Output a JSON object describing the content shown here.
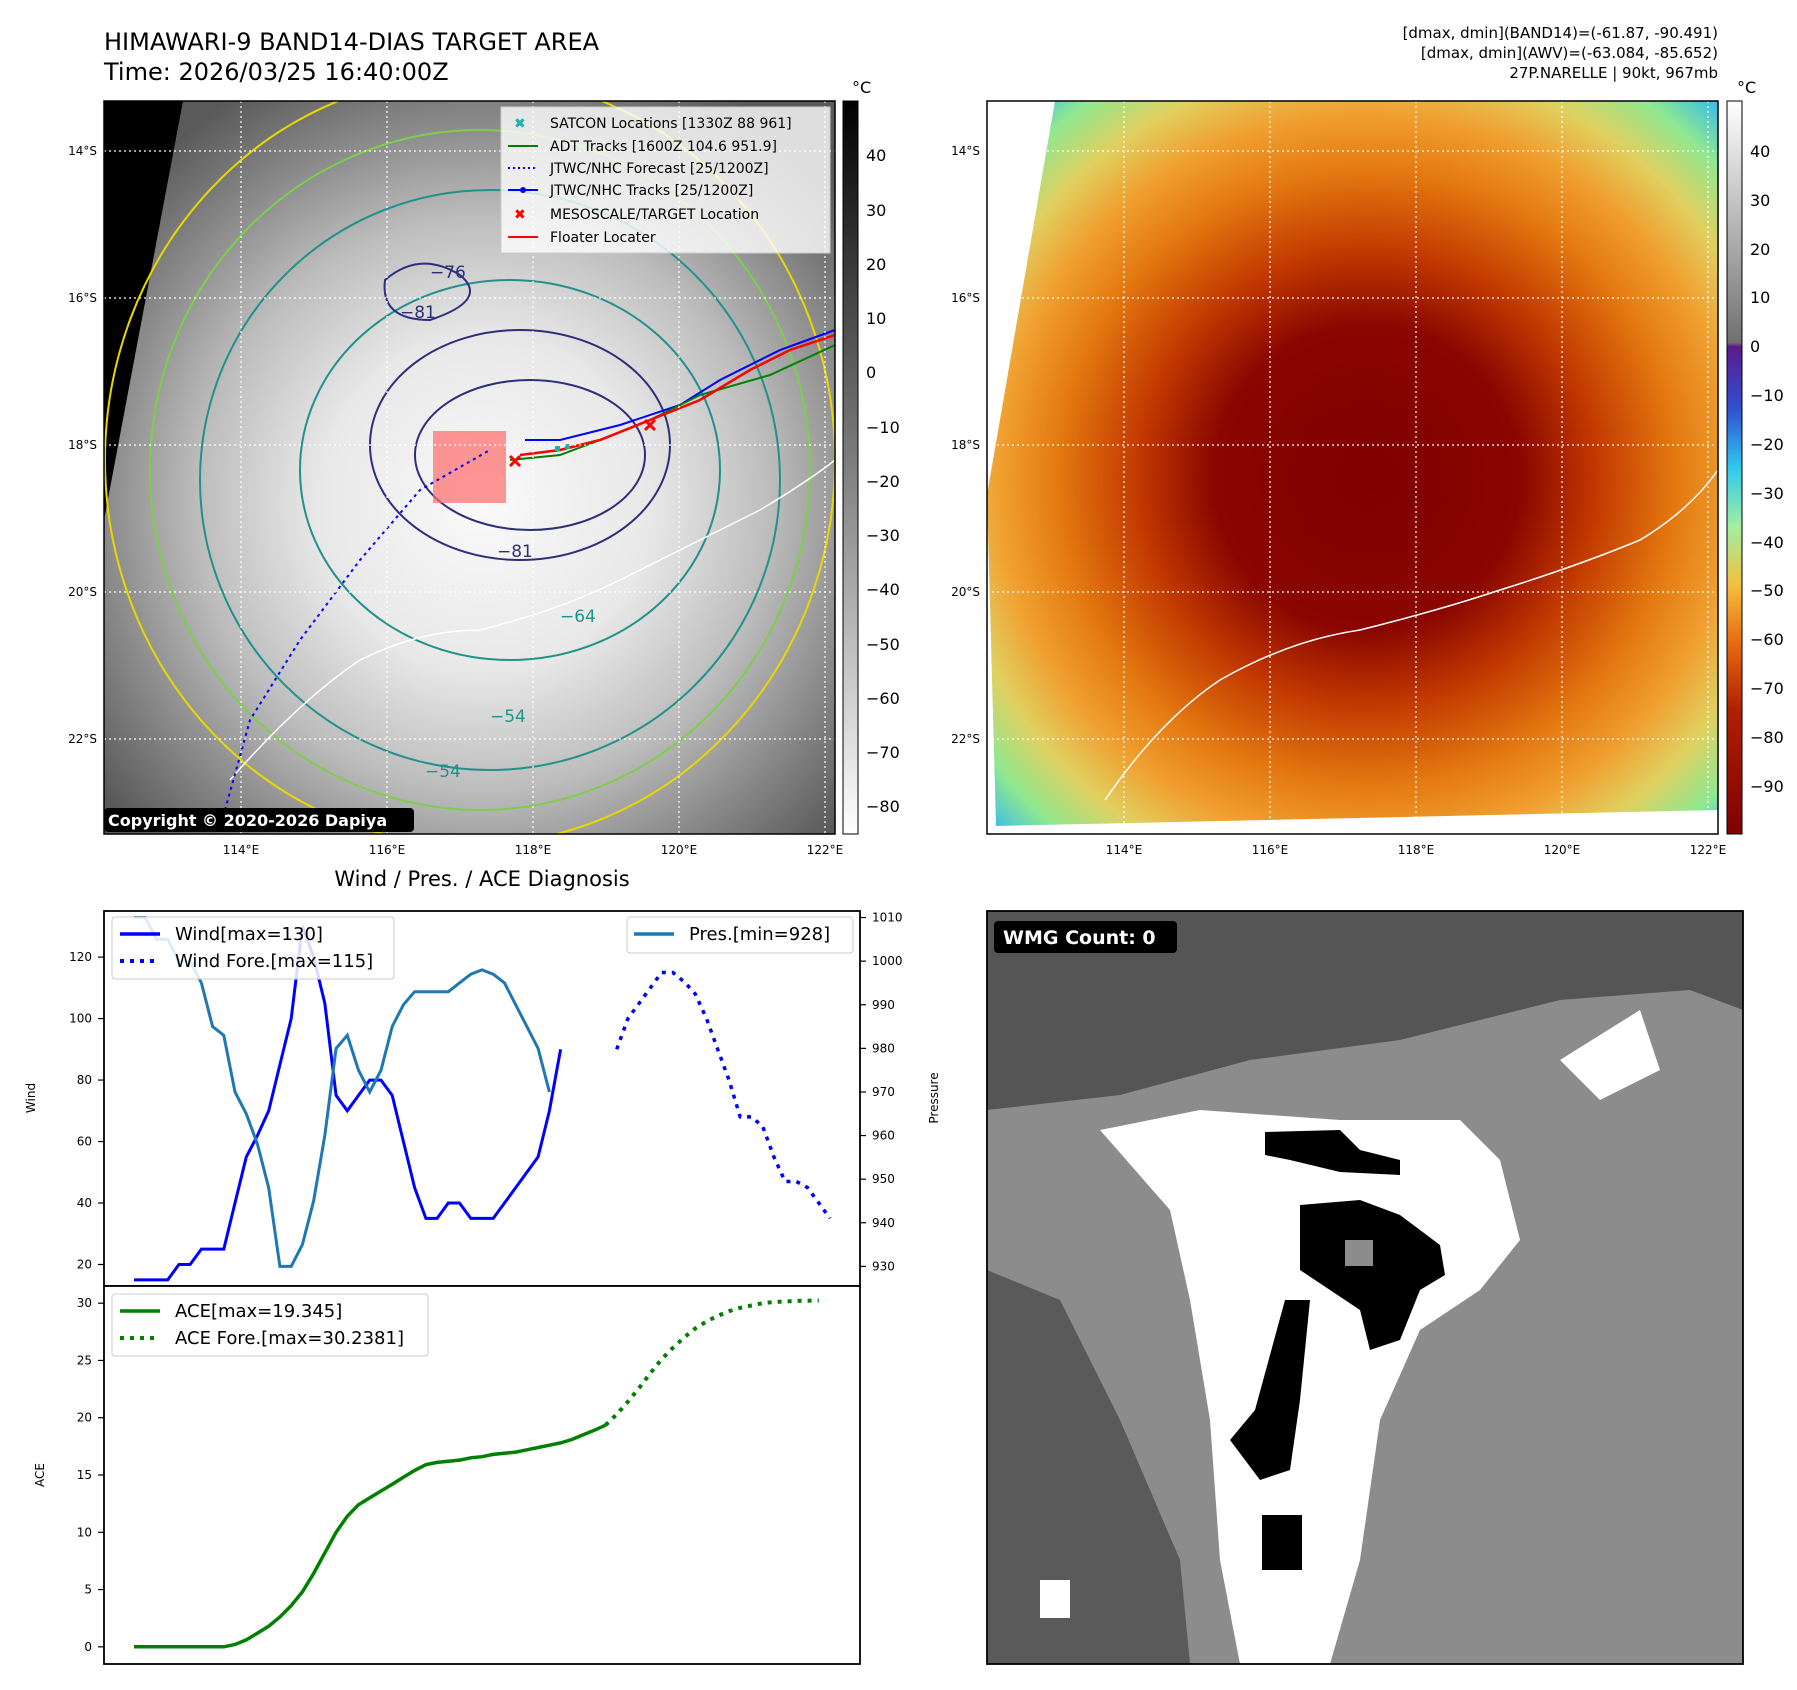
{
  "header": {
    "title": "HIMAWARI-9 BAND14-DIAS TARGET AREA",
    "time": "Time: 2026/03/25 16:40:00Z",
    "info_line1": "[dmax, dmin](BAND14)=(-61.87, -90.491)",
    "info_line2": "[dmax, dmin](AWV)=(-63.084, -85.652)",
    "info_line3": "27P.NARELLE | 90kt, 967mb"
  },
  "colors": {
    "wind": "#0000ff",
    "pressure": "#1f77b4",
    "ace": "#008000",
    "satcon": "#20b2aa",
    "adt": "#008000",
    "jtwc": "#0000ff",
    "mesoscale": "#ff0000",
    "floater": "#ff0000"
  },
  "map_left": {
    "copyright": "Copyright © 2020-2026 Dapiya",
    "cbar_unit": "°C",
    "cbar_ticks": [
      "40",
      "30",
      "20",
      "10",
      "0",
      "−10",
      "−20",
      "−30",
      "−40",
      "−50",
      "−60",
      "−70",
      "−80"
    ],
    "lat_labels": [
      "14°S",
      "16°S",
      "18°S",
      "20°S",
      "22°S"
    ],
    "lon_labels": [
      "114°E",
      "116°E",
      "118°E",
      "120°E",
      "122°E"
    ],
    "contour_labels": [
      "−76",
      "−81",
      "−81",
      "−64",
      "−54",
      "−54"
    ],
    "legend": [
      {
        "label": "SATCON Locations [1330Z 88 961]"
      },
      {
        "label": "ADT Tracks [1600Z 104.6 951.9]"
      },
      {
        "label": "JTWC/NHC Forecast [25/1200Z]"
      },
      {
        "label": "JTWC/NHC Tracks [25/1200Z]"
      },
      {
        "label": "MESOSCALE/TARGET Location"
      },
      {
        "label": "Floater Locater"
      }
    ]
  },
  "map_right": {
    "cbar_unit": "°C",
    "cbar_ticks": [
      "40",
      "30",
      "20",
      "10",
      "0",
      "−10",
      "−20",
      "−30",
      "−40",
      "−50",
      "−60",
      "−70",
      "−80",
      "−90"
    ],
    "lat_labels": [
      "14°S",
      "16°S",
      "18°S",
      "20°S",
      "22°S"
    ],
    "lon_labels": [
      "114°E",
      "116°E",
      "118°E",
      "120°E",
      "122°E"
    ]
  },
  "wmg": {
    "label": "WMG Count: 0"
  },
  "chart_data": [
    {
      "type": "line",
      "title": "Wind / Pres. / ACE Diagnosis",
      "ylabel": "Wind",
      "y2label": "Pressure",
      "ylim": [
        13,
        135
      ],
      "y2lim": [
        925.5,
        1011.5
      ],
      "xlim": [
        0,
        62
      ],
      "yticks": [
        20,
        40,
        60,
        80,
        100,
        120
      ],
      "y2ticks": [
        930,
        940,
        950,
        960,
        970,
        980,
        990,
        1000,
        1010
      ],
      "series": [
        {
          "name": "Wind[max=130]",
          "axis": "left",
          "x": [
            0,
            1,
            2,
            3,
            4,
            5,
            6,
            7,
            8,
            9,
            10,
            11,
            12,
            13,
            14,
            15,
            16,
            17,
            18,
            19,
            20,
            21,
            22,
            23,
            24,
            25,
            26,
            27,
            28,
            29,
            30,
            31,
            32,
            33,
            34,
            35,
            36,
            37,
            38,
            39,
            40,
            41,
            42,
            43
          ],
          "values": [
            15,
            15,
            15,
            15,
            20,
            20,
            25,
            25,
            25,
            40,
            55,
            62,
            70,
            85,
            100,
            130,
            120,
            105,
            75,
            70,
            75,
            80,
            80,
            75,
            60,
            45,
            35,
            35,
            40,
            40,
            35,
            35,
            35,
            40,
            45,
            50,
            55,
            70,
            90,
            null,
            null,
            null,
            null,
            null
          ]
        },
        {
          "name": "Wind Fore.[max=115]",
          "axis": "left",
          "style": "dotted",
          "x": [
            43,
            44,
            45,
            46,
            47,
            48,
            49,
            50,
            51,
            52,
            53,
            54,
            55,
            56,
            57,
            58,
            59,
            60,
            61,
            62
          ],
          "values": [
            90,
            100,
            105,
            110,
            115,
            115,
            112,
            108,
            100,
            90,
            80,
            68,
            68,
            65,
            55,
            47,
            47,
            45,
            40,
            35
          ]
        },
        {
          "name": "Pres.[min=928]",
          "axis": "right",
          "x": [
            0,
            1,
            2,
            3,
            4,
            5,
            6,
            7,
            8,
            9,
            10,
            11,
            12,
            13,
            14,
            15,
            16,
            17,
            18,
            19,
            20,
            21,
            22,
            23,
            24,
            25,
            26,
            27,
            28,
            29,
            30,
            31,
            32,
            33,
            34,
            35,
            36,
            37,
            38,
            39,
            40,
            41,
            42,
            43
          ],
          "values": [
            1010,
            1010,
            1005,
            1005,
            1000,
            1000,
            995,
            985,
            983,
            970,
            965,
            958,
            948,
            930,
            930,
            935,
            945,
            960,
            980,
            983,
            975,
            970,
            975,
            985,
            990,
            993,
            993,
            993,
            993,
            995,
            997,
            998,
            997,
            995,
            990,
            985,
            980,
            970,
            null,
            null,
            null,
            null,
            null,
            null
          ]
        },
        {
          "name": "ACE[max=19.345]",
          "axis": "ace",
          "x": [
            0,
            1,
            2,
            3,
            4,
            5,
            6,
            7,
            8,
            9,
            10,
            11,
            12,
            13,
            14,
            15,
            16,
            17,
            18,
            19,
            20,
            21,
            22,
            23,
            24,
            25,
            26,
            27,
            28,
            29,
            30,
            31,
            32,
            33,
            34,
            35,
            36,
            37,
            38,
            39,
            40,
            41,
            42,
            43
          ],
          "values": [
            0,
            0,
            0,
            0,
            0,
            0,
            0,
            0,
            0,
            0.2,
            0.6,
            1.2,
            1.8,
            2.6,
            3.6,
            4.8,
            6.4,
            8.2,
            10,
            11.4,
            12.4,
            13,
            13.6,
            14.2,
            14.8,
            15.4,
            15.9,
            16.1,
            16.2,
            16.3,
            16.5,
            16.6,
            16.8,
            16.9,
            17,
            17.2,
            17.4,
            17.6,
            17.8,
            18.1,
            18.5,
            18.9,
            19.345,
            null
          ]
        },
        {
          "name": "ACE Fore.[max=30.2381]",
          "axis": "ace",
          "style": "dotted",
          "x": [
            42,
            43,
            44,
            45,
            46,
            47,
            48,
            49,
            50,
            51,
            52,
            53,
            54,
            55,
            56,
            57,
            58,
            59,
            60,
            61
          ],
          "values": [
            19.345,
            20.3,
            21.4,
            22.6,
            23.9,
            25.1,
            26.1,
            27,
            27.8,
            28.4,
            28.9,
            29.3,
            29.6,
            29.8,
            30,
            30.1,
            30.15,
            30.2,
            30.22,
            30.2381
          ]
        }
      ],
      "ace_ylim": [
        -1.5,
        31.5
      ],
      "ace_yticks": [
        0,
        5,
        10,
        15,
        20,
        25,
        30
      ],
      "ace_ylabel": "ACE"
    }
  ]
}
